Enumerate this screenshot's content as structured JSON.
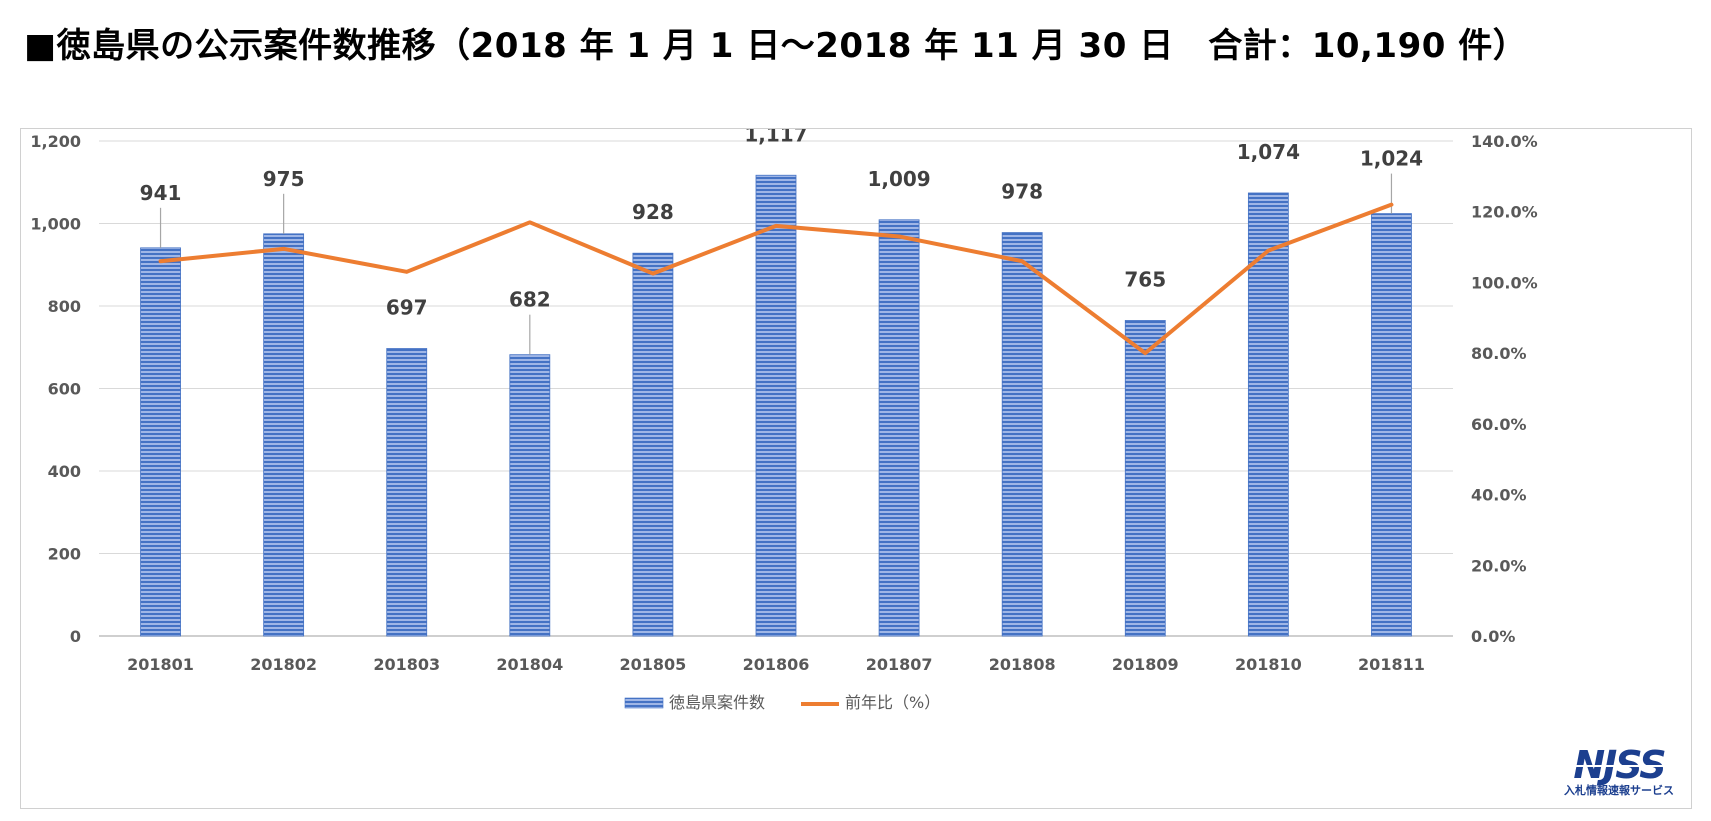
{
  "page": {
    "title": "■徳島県の公示案件数推移（2018 年 1 月 1 日〜2018 年 11 月 30 日　合計：10,190 件）"
  },
  "chart_data": {
    "type": "bar",
    "categories": [
      "201801",
      "201802",
      "201803",
      "201804",
      "201805",
      "201806",
      "201807",
      "201808",
      "201809",
      "201810",
      "201811"
    ],
    "series": [
      {
        "name": "徳島県案件数",
        "type": "bar",
        "axis": "left",
        "values": [
          941,
          975,
          697,
          682,
          928,
          1117,
          1009,
          978,
          765,
          1074,
          1024
        ],
        "labels": [
          "941",
          "975",
          "697",
          "682",
          "928",
          "1,117",
          "1,009",
          "978",
          "765",
          "1,074",
          "1,024"
        ],
        "color": "#4472c4"
      },
      {
        "name": "前年比（%）",
        "type": "line",
        "axis": "right",
        "values": [
          106.0,
          109.5,
          103.0,
          117.0,
          102.5,
          116.0,
          113.0,
          106.0,
          80.0,
          109.0,
          122.0
        ],
        "color": "#ed7d31"
      }
    ],
    "y_left": {
      "ticks": [
        "0",
        "200",
        "400",
        "600",
        "800",
        "1,000",
        "1,200"
      ],
      "ylim": [
        0,
        1200
      ]
    },
    "y_right": {
      "ticks": [
        "0.0%",
        "20.0%",
        "40.0%",
        "60.0%",
        "80.0%",
        "100.0%",
        "120.0%",
        "140.0%"
      ],
      "ylim": [
        0,
        140
      ]
    },
    "grid": true,
    "legend_position": "bottom"
  },
  "logo": {
    "text": "NJSS",
    "subtitle": "入札情報速報サービス",
    "color": "#1c3f8f"
  }
}
